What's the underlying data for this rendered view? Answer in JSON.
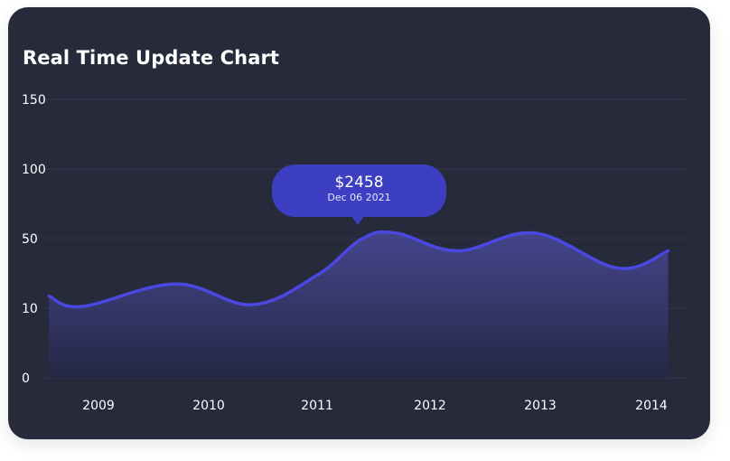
{
  "card": {
    "title": "Real Time Update Chart"
  },
  "tooltip": {
    "value": "$2458",
    "date": "Dec 06 2021"
  },
  "chart_data": {
    "type": "area",
    "title": "Real Time Update Chart",
    "xlabel": "",
    "ylabel": "",
    "y_ticks": [
      "150",
      "100",
      "50",
      "10",
      "0"
    ],
    "x_ticks": [
      "2009",
      "2010",
      "2011",
      "2012",
      "2013",
      "2014"
    ],
    "grid": true,
    "series": [
      {
        "x": [
          2008.55,
          2008.85,
          2009.7,
          2010.4,
          2011.0,
          2011.4,
          2011.7,
          2012.25,
          2012.95,
          2013.7,
          2014.15
        ],
        "y": [
          17,
          11,
          24,
          12,
          29,
          50,
          54,
          43,
          54,
          33,
          43
        ],
        "color": "#4a48e0"
      }
    ],
    "colors": {
      "line": "#4a48e0",
      "fill_top": "#4a4a9a",
      "fill_bottom": "#242745",
      "grid": "#32364a"
    }
  }
}
